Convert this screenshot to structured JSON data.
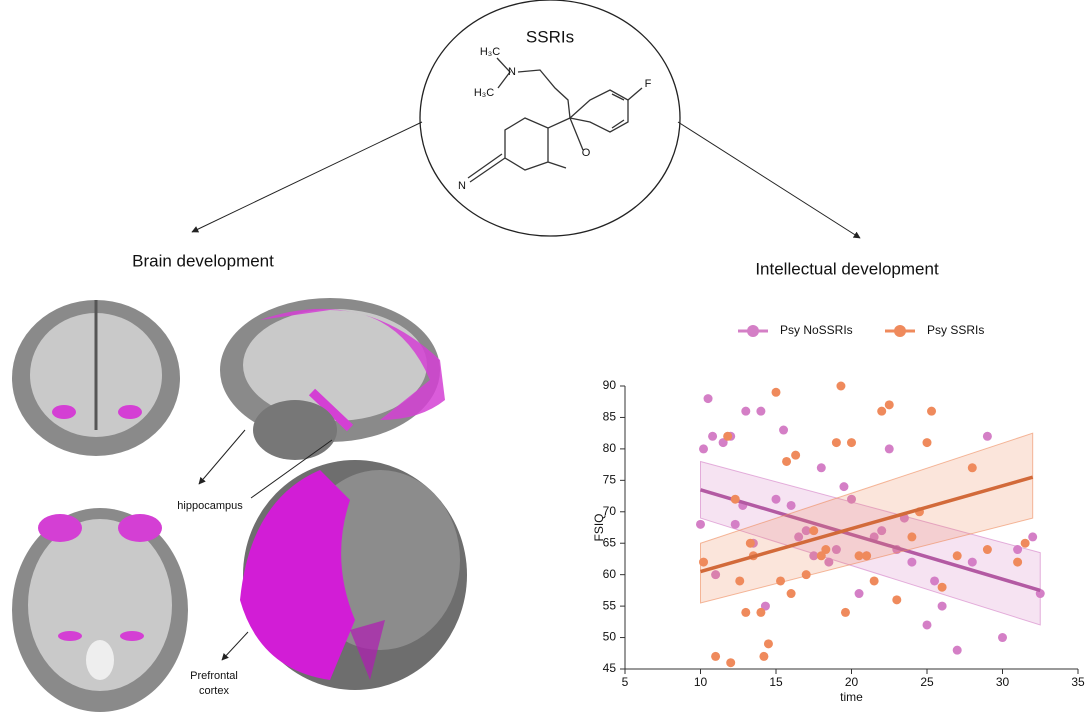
{
  "title": "SSRIs",
  "molecule": {
    "atoms": [
      "H₃C",
      "N",
      "H₃C",
      "F",
      "O",
      "N"
    ]
  },
  "brain": {
    "title": "Brain development",
    "labels": [
      "hippocampus",
      [
        "Prefrontal",
        "cortex"
      ]
    ]
  },
  "intellect": {
    "title": "Intellectual development"
  },
  "chart_data": {
    "type": "scatter",
    "xlabel": "time",
    "ylabel": "FSIQ",
    "xlim": [
      5,
      35
    ],
    "xticks": [
      5,
      10,
      15,
      20,
      25,
      30,
      35
    ],
    "ylim": [
      45,
      90
    ],
    "yticks": [
      45,
      50,
      55,
      60,
      65,
      70,
      75,
      80,
      85,
      90
    ],
    "legend": "top",
    "series": [
      {
        "name": "Psy NoSSRIs",
        "color": "#d47fc6",
        "x": [
          10,
          10.2,
          10.5,
          10.8,
          11,
          11.5,
          12,
          12.3,
          12.8,
          13,
          13.5,
          14,
          14.3,
          15,
          15.5,
          16,
          16.5,
          17,
          17.5,
          18,
          18.5,
          19,
          19.5,
          20,
          20.5,
          21,
          21.5,
          22,
          22.5,
          23,
          23.5,
          24,
          25,
          25.5,
          26,
          27,
          28,
          29,
          30,
          31,
          32,
          32.5
        ],
        "values": [
          68,
          80,
          88,
          82,
          60,
          81,
          82,
          68,
          71,
          86,
          65,
          86,
          55,
          72,
          83,
          71,
          66,
          67,
          63,
          77,
          62,
          64,
          74,
          72,
          57,
          63,
          66,
          67,
          80,
          64,
          69,
          62,
          52,
          59,
          55,
          48,
          62,
          82,
          50,
          64,
          66,
          57
        ],
        "fit": {
          "x": [
            10,
            32.5
          ],
          "values": [
            73.5,
            57.5
          ],
          "lower": [
            69,
            52
          ],
          "upper": [
            78,
            63.5
          ],
          "color": "#b35aa3"
        }
      },
      {
        "name": "Psy SSRIs",
        "color": "#ef8a5c",
        "x": [
          10.2,
          11,
          11.8,
          12,
          12.3,
          12.6,
          13,
          13.3,
          13.5,
          14,
          14.2,
          14.5,
          15,
          15.3,
          15.7,
          16,
          16.3,
          17,
          17.5,
          18,
          18.3,
          19,
          19.3,
          19.6,
          20,
          20.5,
          21,
          21.5,
          22,
          22.5,
          23,
          24,
          24.5,
          25,
          25.3,
          26,
          27,
          28,
          29,
          31,
          31.5
        ],
        "values": [
          62,
          47,
          82,
          46,
          72,
          59,
          54,
          65,
          63,
          54,
          47,
          49,
          89,
          59,
          78,
          57,
          79,
          60,
          67,
          63,
          64,
          81,
          90,
          54,
          81,
          63,
          63,
          59,
          86,
          87,
          56,
          66,
          70,
          81,
          86,
          58,
          63,
          77,
          64,
          62,
          65
        ],
        "fit": {
          "x": [
            10,
            32
          ],
          "values": [
            60.5,
            75.5
          ],
          "lower": [
            55.5,
            69
          ],
          "upper": [
            65,
            82.5
          ],
          "color": "#d26a3a"
        }
      }
    ]
  }
}
